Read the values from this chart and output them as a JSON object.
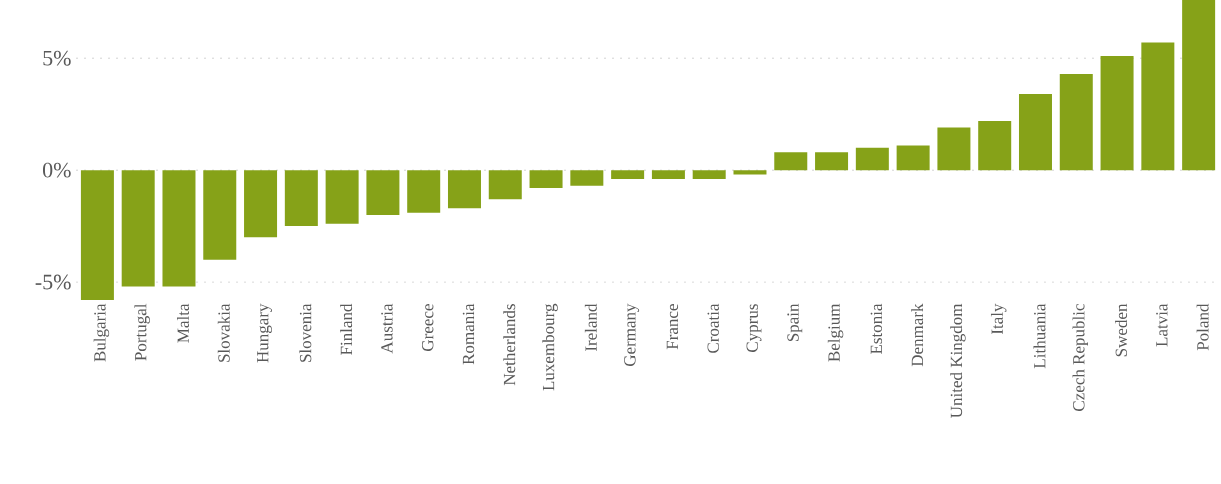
{
  "chart_data": {
    "type": "bar",
    "categories": [
      "Bulgaria",
      "Portugal",
      "Malta",
      "Slovakia",
      "Hungary",
      "Slovenia",
      "Finland",
      "Austria",
      "Greece",
      "Romania",
      "Netherlands",
      "Luxembourg",
      "Ireland",
      "Germany",
      "France",
      "Croatia",
      "Cyprus",
      "Spain",
      "Belgium",
      "Estonia",
      "Denmark",
      "United Kingdom",
      "Italy",
      "Lithuania",
      "Czech Republic",
      "Sweden",
      "Latvia",
      "Poland"
    ],
    "values": [
      -5.8,
      -5.2,
      -5.2,
      -4.0,
      -3.0,
      -2.5,
      -2.4,
      -2.0,
      -1.9,
      -1.7,
      -1.3,
      -0.8,
      -0.7,
      -0.4,
      -0.4,
      -0.4,
      -0.2,
      0.8,
      0.8,
      1.0,
      1.1,
      1.9,
      2.2,
      3.4,
      4.3,
      5.1,
      5.7,
      7.6
    ],
    "color": "#86a218",
    "yticks": [
      {
        "value": -5,
        "label": "-5%"
      },
      {
        "value": 0,
        "label": "0%"
      },
      {
        "value": 5,
        "label": "5%"
      }
    ],
    "ylim": [
      -5.8,
      7.6
    ],
    "grid": "y"
  }
}
